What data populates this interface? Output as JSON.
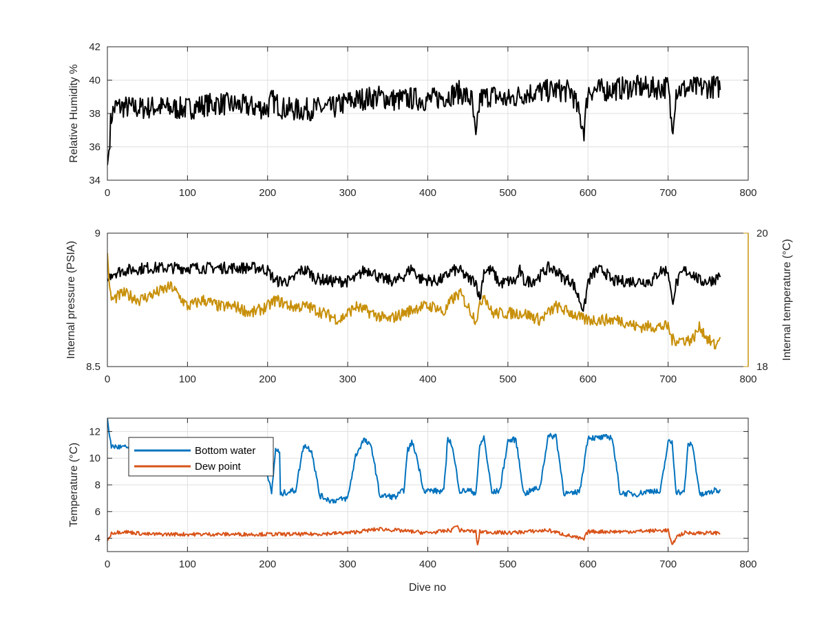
{
  "colors": {
    "humidity": "#000000",
    "pressure": "#000000",
    "internal_temp": "#c8900a",
    "bottom_water": "#0072bd",
    "dew_point": "#d95319",
    "right_axis": "#c8900a"
  },
  "chart_data": [
    {
      "type": "line",
      "xlabel": "",
      "ylabel": "Relative Humidity %",
      "xlim": [
        0,
        800
      ],
      "ylim": [
        34,
        42
      ],
      "xticks": [
        "0",
        "100",
        "200",
        "300",
        "400",
        "500",
        "600",
        "700",
        "800"
      ],
      "yticks": [
        "34",
        "36",
        "38",
        "40",
        "42"
      ],
      "grid": true,
      "series": [
        {
          "key": "humidity",
          "color": "#000000",
          "x": [
            0,
            2,
            4,
            6,
            10,
            20,
            40,
            60,
            80,
            100,
            120,
            140,
            160,
            180,
            200,
            205,
            220,
            240,
            260,
            280,
            300,
            320,
            340,
            360,
            380,
            400,
            420,
            440,
            455,
            460,
            465,
            480,
            500,
            520,
            540,
            560,
            580,
            595,
            600,
            620,
            640,
            660,
            680,
            700,
            705,
            710,
            730,
            750,
            765
          ],
          "y": [
            34.9,
            35.8,
            37.4,
            38.0,
            38.4,
            38.4,
            38.3,
            38.4,
            38.3,
            38.3,
            38.5,
            38.6,
            38.5,
            38.4,
            38.3,
            38.8,
            38.3,
            38.2,
            38.3,
            38.3,
            38.7,
            38.9,
            39.0,
            38.8,
            38.9,
            38.8,
            39.0,
            39.3,
            38.8,
            36.3,
            38.9,
            39.1,
            38.8,
            39.2,
            39.3,
            39.4,
            39.3,
            37.0,
            39.4,
            39.4,
            39.5,
            39.6,
            39.5,
            39.6,
            37.0,
            39.4,
            39.5,
            39.6,
            39.6
          ]
        }
      ]
    },
    {
      "type": "line",
      "xlabel": "",
      "ylabel": "Internal pressure (PSIA)",
      "ylabel_right": "Internal temperature (°C)",
      "xlim": [
        0,
        800
      ],
      "ylim": [
        8.5,
        9
      ],
      "ylim_right": [
        18,
        20
      ],
      "xticks": [
        "0",
        "100",
        "200",
        "300",
        "400",
        "500",
        "600",
        "700",
        "800"
      ],
      "yticks": [
        "8.5",
        "9"
      ],
      "yticks_right": [
        "18",
        "20"
      ],
      "grid": true,
      "series": [
        {
          "key": "pressure",
          "axis": "left",
          "color": "#000000",
          "x": [
            0,
            5,
            20,
            50,
            100,
            150,
            190,
            200,
            210,
            230,
            240,
            250,
            260,
            280,
            300,
            310,
            320,
            330,
            340,
            360,
            370,
            380,
            390,
            410,
            420,
            430,
            440,
            450,
            460,
            465,
            470,
            480,
            490,
            500,
            510,
            515,
            520,
            530,
            540,
            550,
            560,
            570,
            580,
            595,
            600,
            610,
            620,
            630,
            640,
            660,
            680,
            690,
            700,
            705,
            710,
            720,
            730,
            740,
            750,
            760,
            765
          ],
          "y": [
            8.82,
            8.85,
            8.86,
            8.87,
            8.87,
            8.87,
            8.87,
            8.86,
            8.82,
            8.82,
            8.86,
            8.86,
            8.83,
            8.82,
            8.82,
            8.83,
            8.86,
            8.86,
            8.83,
            8.82,
            8.84,
            8.87,
            8.83,
            8.82,
            8.83,
            8.86,
            8.86,
            8.83,
            8.82,
            8.75,
            8.86,
            8.86,
            8.81,
            8.82,
            8.82,
            8.86,
            8.82,
            8.82,
            8.84,
            8.87,
            8.86,
            8.83,
            8.82,
            8.71,
            8.82,
            8.86,
            8.86,
            8.82,
            8.82,
            8.82,
            8.82,
            8.86,
            8.86,
            8.74,
            8.81,
            8.86,
            8.85,
            8.82,
            8.82,
            8.83,
            8.85
          ]
        },
        {
          "key": "internal_temp",
          "axis": "right",
          "color": "#c8900a",
          "x": [
            0,
            3,
            6,
            20,
            40,
            60,
            80,
            100,
            120,
            140,
            160,
            180,
            200,
            210,
            230,
            250,
            270,
            290,
            310,
            330,
            350,
            370,
            390,
            410,
            420,
            430,
            440,
            450,
            460,
            470,
            480,
            500,
            520,
            540,
            560,
            580,
            595,
            600,
            620,
            640,
            660,
            680,
            700,
            705,
            710,
            730,
            740,
            750,
            760,
            765
          ],
          "y": [
            19.7,
            19.1,
            19.0,
            19.1,
            19.0,
            19.1,
            19.2,
            18.9,
            19.0,
            18.9,
            18.9,
            18.8,
            18.9,
            19.0,
            18.9,
            18.9,
            18.8,
            18.7,
            18.9,
            18.8,
            18.7,
            18.8,
            18.9,
            18.9,
            18.8,
            19.0,
            19.1,
            18.9,
            18.7,
            19.1,
            18.8,
            18.8,
            18.8,
            18.7,
            18.9,
            18.8,
            18.7,
            18.7,
            18.7,
            18.7,
            18.6,
            18.6,
            18.6,
            18.4,
            18.4,
            18.4,
            18.6,
            18.4,
            18.3,
            18.5
          ]
        }
      ]
    },
    {
      "type": "line",
      "xlabel": "Dive no",
      "ylabel": "Temperature (°C)",
      "xlim": [
        0,
        800
      ],
      "ylim": [
        3,
        13
      ],
      "xticks": [
        "0",
        "100",
        "200",
        "300",
        "400",
        "500",
        "600",
        "700",
        "800"
      ],
      "yticks": [
        "4",
        "6",
        "8",
        "10",
        "12"
      ],
      "grid": true,
      "legend": "top-left",
      "series": [
        {
          "name": "Bottom water",
          "key": "bottom_water",
          "color": "#0072bd",
          "x": [
            0,
            3,
            5,
            20,
            60,
            100,
            150,
            195,
            205,
            210,
            215,
            216,
            220,
            235,
            245,
            255,
            265,
            280,
            300,
            310,
            320,
            330,
            340,
            360,
            370,
            375,
            380,
            385,
            395,
            420,
            425,
            430,
            440,
            450,
            460,
            465,
            470,
            480,
            490,
            500,
            510,
            520,
            530,
            540,
            550,
            560,
            570,
            580,
            590,
            600,
            610,
            630,
            640,
            660,
            680,
            690,
            700,
            705,
            710,
            720,
            725,
            730,
            740,
            760,
            765
          ],
          "y": [
            13.0,
            11.4,
            10.9,
            10.8,
            10.7,
            10.5,
            10.4,
            10.4,
            7.3,
            10.7,
            10.4,
            7.2,
            7.4,
            7.6,
            11.0,
            10.6,
            7.2,
            6.8,
            7.0,
            10.2,
            11.4,
            10.8,
            7.2,
            7.1,
            7.6,
            10.6,
            11.2,
            10.4,
            7.6,
            7.5,
            11.6,
            11.0,
            7.5,
            7.6,
            7.4,
            10.9,
            11.6,
            7.4,
            7.6,
            11.3,
            11.4,
            7.3,
            7.6,
            7.8,
            11.6,
            11.7,
            7.4,
            7.3,
            7.6,
            11.6,
            11.5,
            11.6,
            7.4,
            7.3,
            7.6,
            7.4,
            11.2,
            11.2,
            7.5,
            7.4,
            11.0,
            11.1,
            7.2,
            7.6,
            7.5
          ]
        },
        {
          "name": "Dew point",
          "key": "dew_point",
          "color": "#d95319",
          "x": [
            0,
            5,
            20,
            50,
            100,
            150,
            200,
            250,
            300,
            340,
            400,
            430,
            435,
            440,
            460,
            462,
            465,
            500,
            550,
            595,
            597,
            600,
            650,
            700,
            705,
            710,
            720,
            765
          ],
          "y": [
            3.8,
            4.4,
            4.5,
            4.3,
            4.3,
            4.3,
            4.3,
            4.3,
            4.4,
            4.7,
            4.4,
            4.6,
            5.0,
            4.6,
            4.5,
            3.4,
            4.5,
            4.4,
            4.6,
            3.9,
            4.2,
            4.5,
            4.5,
            4.6,
            3.4,
            4.1,
            4.4,
            4.4
          ]
        }
      ]
    }
  ]
}
